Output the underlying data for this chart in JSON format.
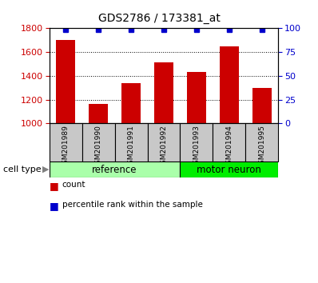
{
  "title": "GDS2786 / 173381_at",
  "samples": [
    "GSM201989",
    "GSM201990",
    "GSM201991",
    "GSM201992",
    "GSM201993",
    "GSM201994",
    "GSM201995"
  ],
  "counts": [
    1700,
    1160,
    1340,
    1510,
    1435,
    1645,
    1300
  ],
  "percentile_ranks": [
    99,
    99,
    99,
    99,
    99,
    99,
    99
  ],
  "ylim_left": [
    1000,
    1800
  ],
  "ylim_right": [
    0,
    100
  ],
  "yticks_left": [
    1000,
    1200,
    1400,
    1600,
    1800
  ],
  "yticks_right": [
    0,
    25,
    50,
    75,
    100
  ],
  "bar_color": "#cc0000",
  "dot_color": "#0000cc",
  "groups": [
    {
      "label": "reference",
      "n_samples": 4,
      "color": "#aaffaa"
    },
    {
      "label": "motor neuron",
      "n_samples": 3,
      "color": "#00ee00"
    }
  ],
  "cell_type_label": "cell type",
  "legend_count_label": "count",
  "legend_percentile_label": "percentile rank within the sample",
  "tick_label_color_left": "#cc0000",
  "tick_label_color_right": "#0000cc",
  "label_bg_color": "#c8c8c8",
  "fig_width": 3.98,
  "fig_height": 3.54
}
